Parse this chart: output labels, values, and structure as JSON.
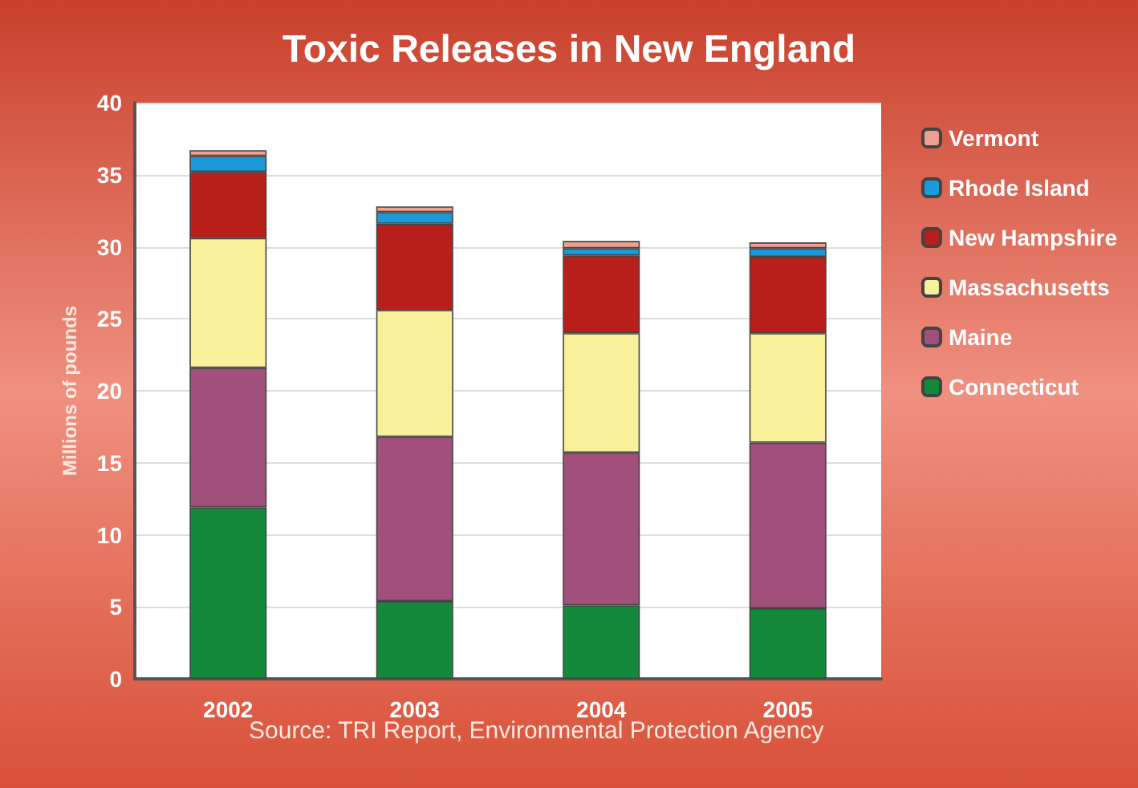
{
  "chart_data": {
    "type": "bar",
    "title": "Toxic Releases in New England",
    "ylabel": "Millions of pounds",
    "categories": [
      "2002",
      "2003",
      "2004",
      "2005"
    ],
    "series": [
      {
        "name": "Connecticut",
        "color": "#14893c",
        "values": [
          11.9,
          5.4,
          5.1,
          4.9
        ]
      },
      {
        "name": "Maine",
        "color": "#a0507a",
        "values": [
          9.7,
          11.4,
          10.6,
          11.5
        ]
      },
      {
        "name": "Massachusetts",
        "color": "#f8f09a",
        "values": [
          9.0,
          8.8,
          8.3,
          7.6
        ]
      },
      {
        "name": "New Hampshire",
        "color": "#b81f1a",
        "values": [
          4.6,
          6.0,
          5.4,
          5.3
        ]
      },
      {
        "name": "Rhode Island",
        "color": "#1a9ad8",
        "values": [
          1.1,
          0.8,
          0.5,
          0.6
        ]
      },
      {
        "name": "Vermont",
        "color": "#f0a090",
        "values": [
          0.4,
          0.4,
          0.5,
          0.4
        ]
      }
    ],
    "stacked": true,
    "ylim": [
      0,
      40
    ],
    "yticks": [
      0,
      5,
      10,
      15,
      20,
      25,
      30,
      35,
      40
    ],
    "grid": "y",
    "legend": "right",
    "annotations": [
      "Source: TRI Report, Environmental Protection Agency"
    ]
  }
}
